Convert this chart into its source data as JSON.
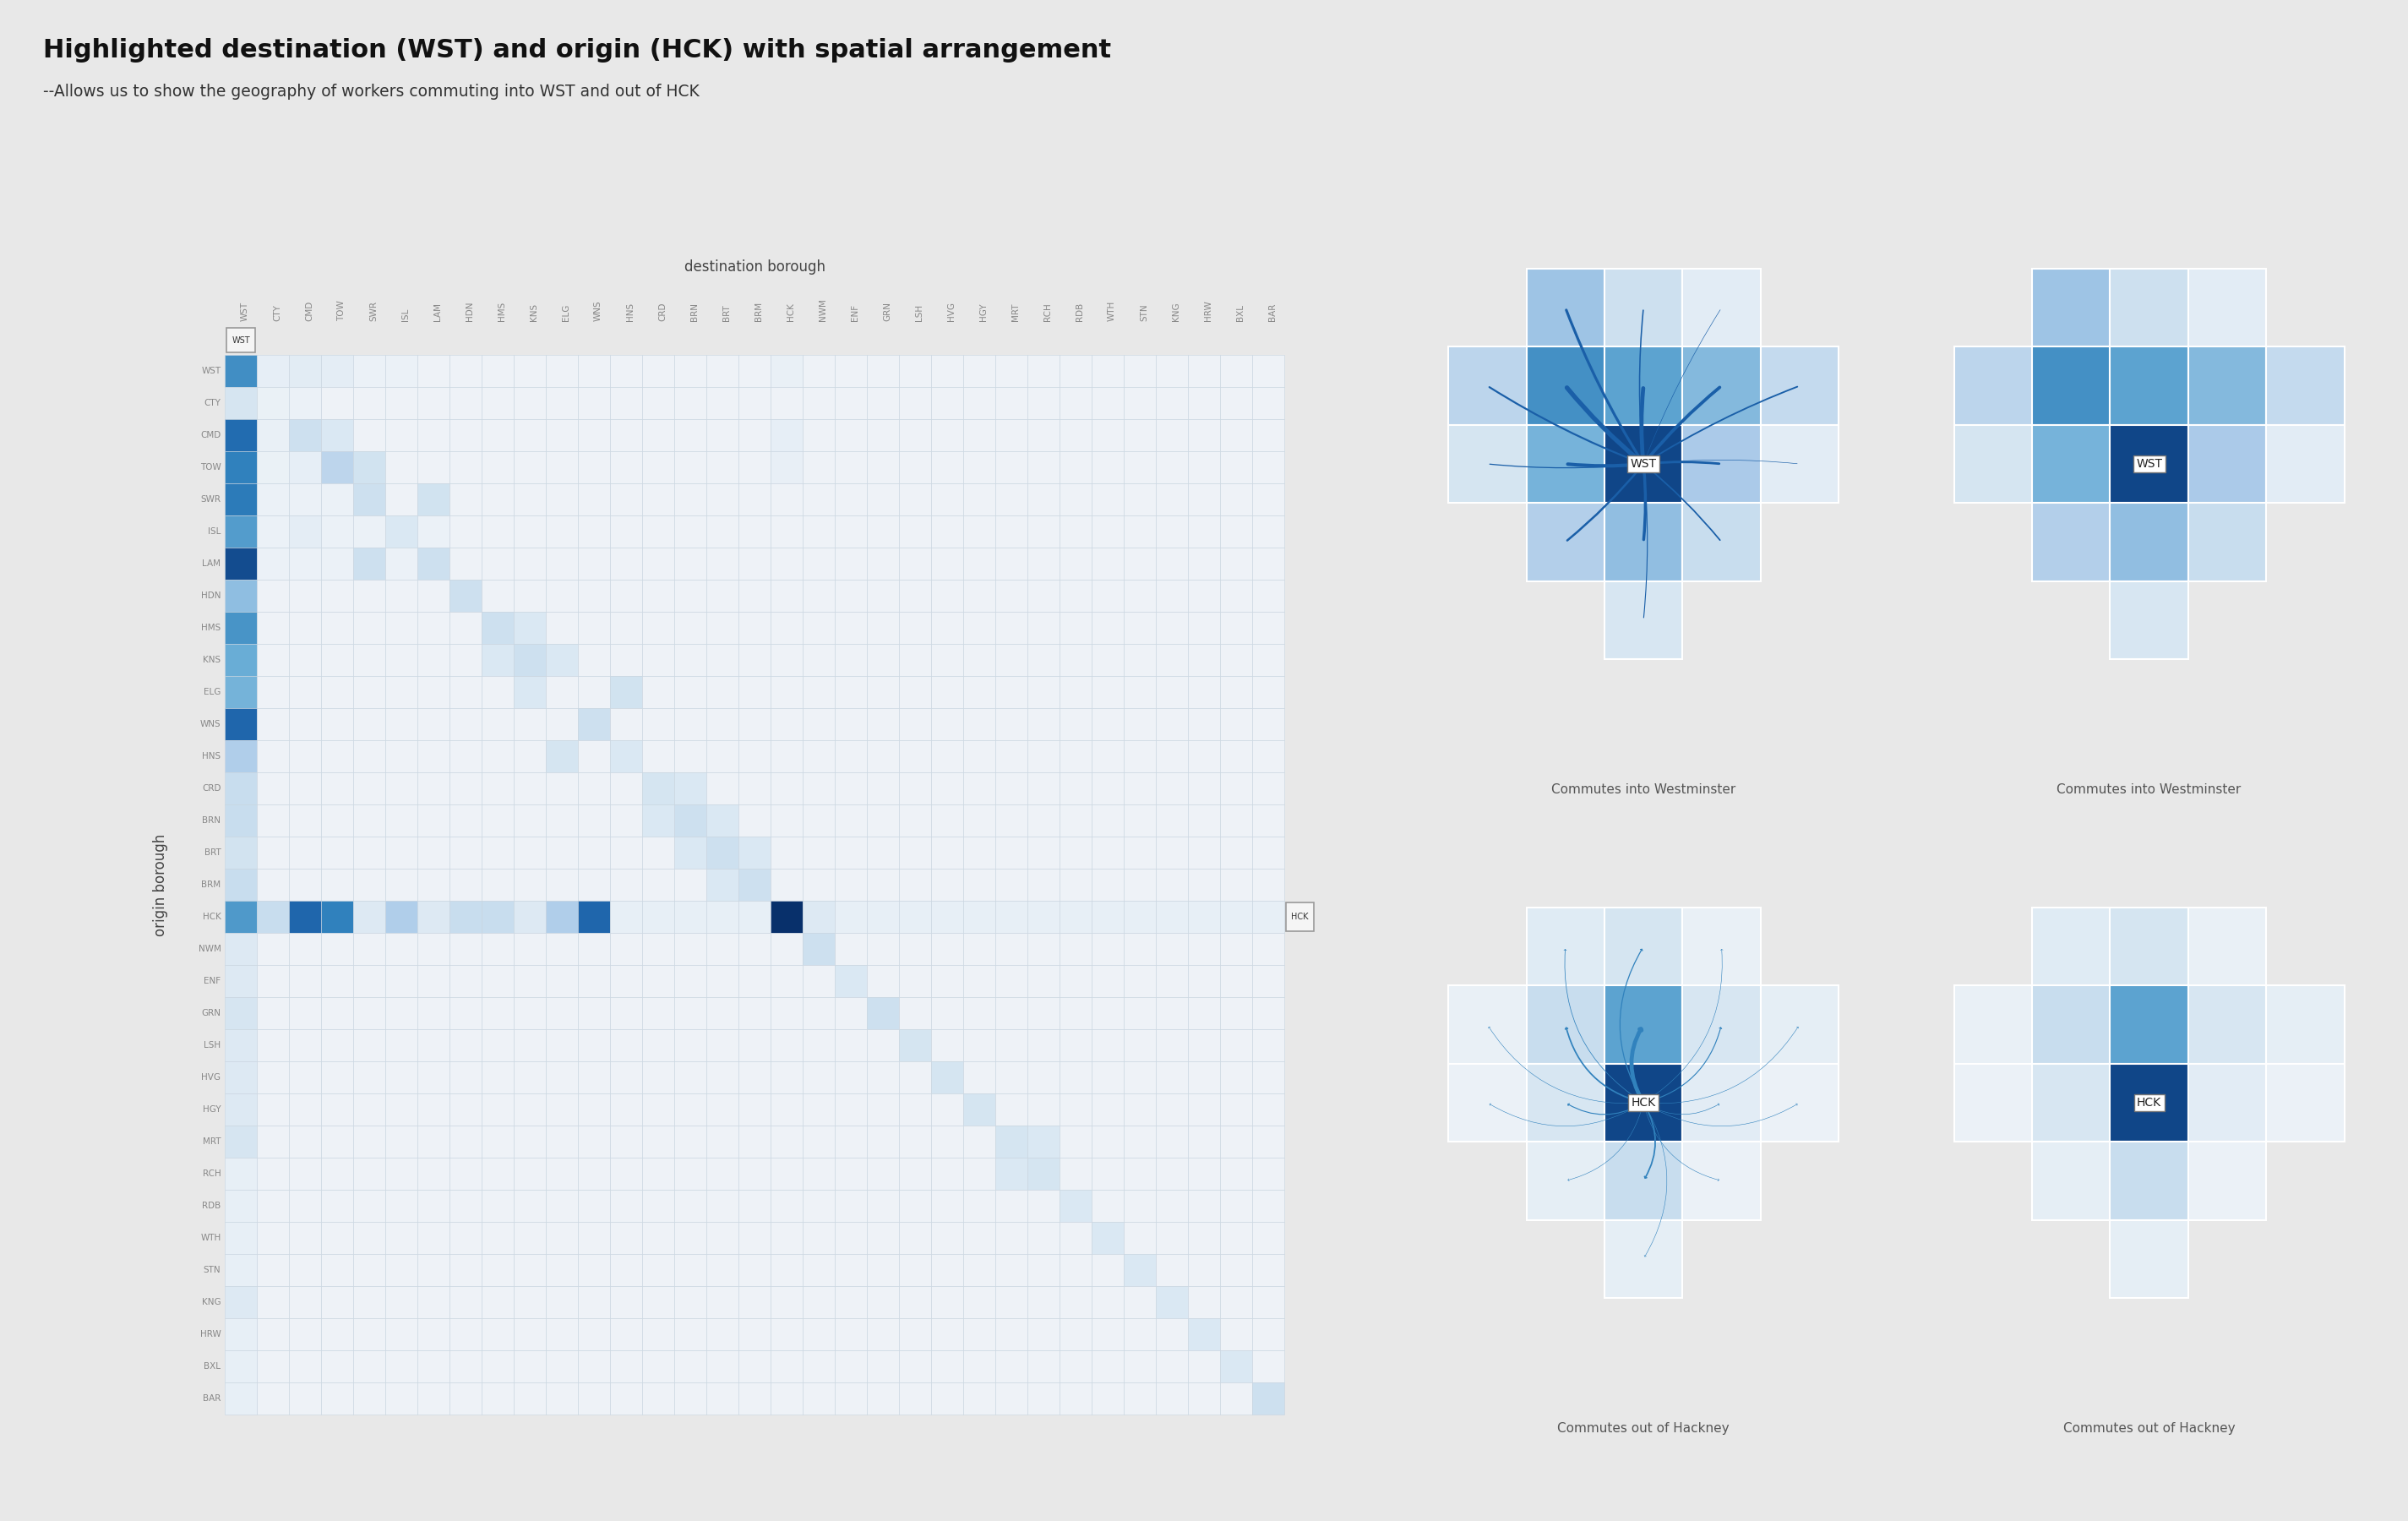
{
  "title": "Highlighted destination (WST) and origin (HCK) with spatial arrangement",
  "subtitle": "--Allows us to show the geography of workers commuting into WST and out of HCK",
  "background_color": "#e8e8e8",
  "boroughs": [
    "WST",
    "CTY",
    "CMD",
    "TOW",
    "SWR",
    "ISL",
    "LAM",
    "HDN",
    "HMS",
    "KNS",
    "ELG",
    "WNS",
    "HNS",
    "CRD",
    "BRN",
    "BRT",
    "BRM",
    "HCK",
    "NWM",
    "ENF",
    "GRN",
    "LSH",
    "HVG",
    "HGY",
    "MRT",
    "RCH",
    "RDB",
    "WTH",
    "STN",
    "KNG",
    "HRW",
    "BXL",
    "BAR"
  ],
  "wst_col_idx": 0,
  "hck_row_idx": 17,
  "matrix": [
    [
      60,
      8,
      12,
      10,
      4,
      4,
      3,
      3,
      2,
      2,
      2,
      2,
      2,
      2,
      2,
      2,
      2,
      6,
      2,
      2,
      2,
      2,
      2,
      2,
      2,
      2,
      2,
      2,
      2,
      2,
      2,
      2,
      2
    ],
    [
      12,
      5,
      4,
      3,
      2,
      2,
      2,
      2,
      2,
      2,
      2,
      2,
      2,
      2,
      2,
      2,
      2,
      3,
      2,
      2,
      2,
      2,
      2,
      2,
      2,
      2,
      2,
      2,
      2,
      2,
      2,
      2,
      2
    ],
    [
      75,
      6,
      28,
      18,
      3,
      3,
      3,
      2,
      2,
      2,
      2,
      2,
      2,
      2,
      2,
      2,
      2,
      8,
      2,
      2,
      2,
      2,
      2,
      2,
      2,
      2,
      2,
      2,
      2,
      2,
      2,
      2,
      2
    ],
    [
      65,
      5,
      8,
      38,
      25,
      3,
      3,
      2,
      2,
      2,
      2,
      2,
      2,
      2,
      2,
      2,
      2,
      7,
      2,
      2,
      2,
      2,
      2,
      2,
      2,
      2,
      2,
      2,
      2,
      2,
      2,
      2,
      2
    ],
    [
      68,
      4,
      4,
      4,
      28,
      3,
      25,
      2,
      2,
      2,
      2,
      2,
      2,
      2,
      2,
      2,
      2,
      3,
      2,
      2,
      2,
      2,
      2,
      2,
      2,
      2,
      2,
      2,
      2,
      2,
      2,
      2,
      2
    ],
    [
      55,
      4,
      10,
      4,
      4,
      18,
      4,
      2,
      2,
      2,
      2,
      2,
      2,
      2,
      2,
      2,
      2,
      3,
      2,
      2,
      2,
      2,
      2,
      2,
      2,
      2,
      2,
      2,
      2,
      2,
      2,
      2,
      2
    ],
    [
      88,
      4,
      4,
      4,
      28,
      4,
      28,
      2,
      2,
      2,
      2,
      2,
      2,
      2,
      2,
      2,
      2,
      3,
      2,
      2,
      2,
      2,
      2,
      2,
      2,
      2,
      2,
      2,
      2,
      2,
      2,
      2,
      2
    ],
    [
      38,
      3,
      3,
      3,
      3,
      3,
      3,
      28,
      3,
      3,
      3,
      3,
      3,
      2,
      2,
      2,
      2,
      3,
      2,
      2,
      2,
      2,
      2,
      2,
      2,
      2,
      2,
      2,
      2,
      2,
      2,
      2,
      2
    ],
    [
      58,
      3,
      3,
      3,
      3,
      3,
      3,
      3,
      28,
      18,
      3,
      3,
      3,
      2,
      2,
      2,
      2,
      3,
      2,
      2,
      2,
      2,
      2,
      2,
      2,
      2,
      2,
      2,
      2,
      2,
      2,
      2,
      2
    ],
    [
      48,
      3,
      3,
      3,
      3,
      3,
      3,
      3,
      18,
      28,
      18,
      3,
      3,
      2,
      2,
      2,
      2,
      3,
      2,
      2,
      2,
      2,
      2,
      2,
      2,
      2,
      2,
      2,
      2,
      2,
      2,
      2,
      2
    ],
    [
      45,
      3,
      3,
      3,
      3,
      3,
      3,
      3,
      3,
      18,
      3,
      3,
      25,
      2,
      2,
      2,
      2,
      3,
      2,
      2,
      2,
      2,
      2,
      2,
      2,
      2,
      2,
      2,
      2,
      2,
      2,
      2,
      2
    ],
    [
      78,
      3,
      3,
      3,
      3,
      3,
      3,
      3,
      3,
      3,
      3,
      28,
      3,
      2,
      2,
      2,
      2,
      3,
      2,
      2,
      2,
      2,
      2,
      2,
      2,
      2,
      2,
      2,
      2,
      2,
      2,
      2,
      2
    ],
    [
      28,
      3,
      3,
      3,
      3,
      3,
      3,
      3,
      3,
      3,
      22,
      3,
      18,
      2,
      2,
      2,
      2,
      3,
      2,
      2,
      2,
      2,
      2,
      2,
      2,
      2,
      2,
      2,
      2,
      2,
      2,
      2,
      2
    ],
    [
      18,
      3,
      3,
      3,
      3,
      3,
      3,
      3,
      3,
      3,
      3,
      3,
      3,
      22,
      18,
      3,
      3,
      3,
      2,
      2,
      2,
      2,
      2,
      2,
      2,
      2,
      2,
      2,
      2,
      2,
      2,
      2,
      2
    ],
    [
      18,
      3,
      3,
      3,
      3,
      3,
      3,
      3,
      3,
      3,
      3,
      3,
      3,
      18,
      28,
      18,
      3,
      3,
      2,
      2,
      2,
      2,
      2,
      2,
      2,
      2,
      2,
      2,
      2,
      2,
      2,
      2,
      2
    ],
    [
      14,
      3,
      3,
      3,
      3,
      3,
      3,
      3,
      3,
      3,
      3,
      3,
      3,
      3,
      18,
      28,
      18,
      3,
      2,
      2,
      2,
      2,
      2,
      2,
      2,
      2,
      2,
      2,
      2,
      2,
      2,
      2,
      2
    ],
    [
      18,
      3,
      3,
      3,
      3,
      3,
      3,
      3,
      3,
      3,
      3,
      3,
      3,
      3,
      3,
      18,
      28,
      3,
      2,
      2,
      2,
      2,
      2,
      2,
      2,
      2,
      2,
      2,
      2,
      2,
      2,
      2,
      2
    ],
    [
      58,
      18,
      78,
      65,
      8,
      28,
      8,
      18,
      18,
      8,
      28,
      78,
      3,
      3,
      3,
      3,
      3,
      100,
      8,
      3,
      3,
      3,
      3,
      3,
      3,
      3,
      3,
      3,
      3,
      3,
      3,
      3,
      3
    ],
    [
      8,
      3,
      3,
      3,
      3,
      3,
      3,
      3,
      3,
      3,
      3,
      3,
      3,
      3,
      3,
      3,
      3,
      3,
      28,
      3,
      3,
      3,
      3,
      3,
      3,
      3,
      3,
      3,
      3,
      3,
      3,
      3,
      3
    ],
    [
      8,
      3,
      3,
      3,
      3,
      3,
      3,
      3,
      3,
      3,
      3,
      3,
      3,
      3,
      3,
      3,
      3,
      3,
      3,
      18,
      3,
      3,
      3,
      3,
      3,
      3,
      3,
      3,
      3,
      3,
      3,
      3,
      3
    ],
    [
      12,
      3,
      3,
      3,
      3,
      3,
      3,
      3,
      3,
      3,
      3,
      3,
      3,
      3,
      3,
      3,
      3,
      3,
      3,
      3,
      28,
      3,
      3,
      3,
      3,
      3,
      3,
      3,
      3,
      3,
      3,
      3,
      3
    ],
    [
      8,
      3,
      3,
      3,
      3,
      3,
      3,
      3,
      3,
      3,
      3,
      3,
      3,
      3,
      3,
      3,
      3,
      3,
      3,
      3,
      3,
      22,
      3,
      3,
      3,
      3,
      3,
      3,
      3,
      3,
      3,
      3,
      3
    ],
    [
      8,
      3,
      3,
      3,
      3,
      3,
      3,
      3,
      3,
      3,
      3,
      3,
      3,
      3,
      3,
      3,
      3,
      3,
      3,
      3,
      3,
      3,
      22,
      3,
      3,
      3,
      3,
      3,
      3,
      3,
      3,
      3,
      3
    ],
    [
      8,
      3,
      3,
      3,
      3,
      3,
      3,
      3,
      3,
      3,
      3,
      3,
      3,
      3,
      3,
      3,
      3,
      3,
      3,
      3,
      3,
      3,
      3,
      22,
      3,
      3,
      3,
      3,
      3,
      3,
      3,
      3,
      3
    ],
    [
      12,
      3,
      3,
      3,
      3,
      3,
      3,
      3,
      3,
      3,
      3,
      3,
      3,
      3,
      3,
      3,
      3,
      3,
      3,
      3,
      3,
      3,
      3,
      3,
      22,
      18,
      3,
      3,
      3,
      3,
      3,
      3,
      3
    ],
    [
      3,
      3,
      3,
      3,
      3,
      3,
      3,
      3,
      3,
      3,
      3,
      3,
      3,
      3,
      3,
      3,
      3,
      3,
      3,
      3,
      3,
      3,
      3,
      3,
      18,
      22,
      3,
      3,
      3,
      3,
      3,
      3,
      3
    ],
    [
      3,
      3,
      3,
      3,
      3,
      3,
      3,
      3,
      3,
      3,
      3,
      3,
      3,
      3,
      3,
      3,
      3,
      3,
      3,
      3,
      3,
      3,
      3,
      3,
      3,
      3,
      18,
      3,
      3,
      3,
      3,
      3,
      3
    ],
    [
      3,
      3,
      3,
      3,
      3,
      3,
      3,
      3,
      3,
      3,
      3,
      3,
      3,
      3,
      3,
      3,
      3,
      3,
      3,
      3,
      3,
      3,
      3,
      3,
      3,
      3,
      3,
      18,
      3,
      3,
      3,
      3,
      3
    ],
    [
      3,
      3,
      3,
      3,
      3,
      3,
      3,
      3,
      3,
      3,
      3,
      3,
      3,
      3,
      3,
      3,
      3,
      3,
      3,
      3,
      3,
      3,
      3,
      3,
      3,
      3,
      3,
      3,
      18,
      3,
      3,
      3,
      3
    ],
    [
      8,
      3,
      3,
      3,
      3,
      3,
      3,
      3,
      3,
      3,
      3,
      3,
      3,
      3,
      3,
      3,
      3,
      3,
      3,
      3,
      3,
      3,
      3,
      3,
      3,
      3,
      3,
      3,
      3,
      18,
      3,
      3,
      3
    ],
    [
      3,
      3,
      3,
      3,
      3,
      3,
      3,
      3,
      3,
      3,
      3,
      3,
      3,
      3,
      3,
      3,
      3,
      3,
      3,
      3,
      3,
      3,
      3,
      3,
      3,
      3,
      3,
      3,
      3,
      3,
      18,
      3,
      3
    ],
    [
      3,
      3,
      3,
      3,
      3,
      3,
      3,
      3,
      3,
      3,
      3,
      3,
      3,
      3,
      3,
      3,
      3,
      3,
      3,
      3,
      3,
      3,
      3,
      3,
      3,
      3,
      3,
      3,
      3,
      3,
      3,
      18,
      3
    ],
    [
      3,
      3,
      3,
      3,
      3,
      3,
      3,
      3,
      3,
      3,
      3,
      3,
      3,
      3,
      3,
      3,
      3,
      3,
      3,
      3,
      3,
      3,
      3,
      3,
      3,
      3,
      3,
      3,
      3,
      3,
      3,
      3,
      28
    ]
  ],
  "ylabel": "origin borough",
  "xlabel": "destination borough",
  "text_color": "#888888",
  "grid_line_color": "#cccccc",
  "wst_spatial_cells": [
    {
      "row": 0,
      "col": 1,
      "val": 50
    },
    {
      "row": 0,
      "col": 2,
      "val": 25
    },
    {
      "row": 0,
      "col": 3,
      "val": 10
    },
    {
      "row": 1,
      "col": 0,
      "val": 35
    },
    {
      "row": 1,
      "col": 1,
      "val": 85
    },
    {
      "row": 1,
      "col": 2,
      "val": 75
    },
    {
      "row": 1,
      "col": 3,
      "val": 60
    },
    {
      "row": 1,
      "col": 4,
      "val": 30
    },
    {
      "row": 2,
      "col": 0,
      "val": 20
    },
    {
      "row": 2,
      "col": 1,
      "val": 65
    },
    {
      "row": 2,
      "col": 2,
      "val": 100
    },
    {
      "row": 2,
      "col": 3,
      "val": 45
    },
    {
      "row": 2,
      "col": 4,
      "val": 10
    },
    {
      "row": 3,
      "col": 1,
      "val": 40
    },
    {
      "row": 3,
      "col": 2,
      "val": 55
    },
    {
      "row": 3,
      "col": 3,
      "val": 28
    },
    {
      "row": 4,
      "col": 2,
      "val": 18
    }
  ],
  "wst_hl_row": 2,
  "wst_hl_col": 2,
  "hck_spatial_cells": [
    {
      "row": 0,
      "col": 1,
      "val": 12
    },
    {
      "row": 0,
      "col": 2,
      "val": 20
    },
    {
      "row": 0,
      "col": 3,
      "val": 5
    },
    {
      "row": 1,
      "col": 0,
      "val": 5
    },
    {
      "row": 1,
      "col": 1,
      "val": 28
    },
    {
      "row": 1,
      "col": 2,
      "val": 75
    },
    {
      "row": 1,
      "col": 3,
      "val": 18
    },
    {
      "row": 1,
      "col": 4,
      "val": 8
    },
    {
      "row": 2,
      "col": 0,
      "val": 4
    },
    {
      "row": 2,
      "col": 1,
      "val": 18
    },
    {
      "row": 2,
      "col": 2,
      "val": 100
    },
    {
      "row": 2,
      "col": 3,
      "val": 10
    },
    {
      "row": 2,
      "col": 4,
      "val": 4
    },
    {
      "row": 3,
      "col": 1,
      "val": 8
    },
    {
      "row": 3,
      "col": 2,
      "val": 28
    },
    {
      "row": 3,
      "col": 3,
      "val": 4
    },
    {
      "row": 4,
      "col": 2,
      "val": 8
    }
  ],
  "hck_hl_row": 2,
  "hck_hl_col": 2
}
